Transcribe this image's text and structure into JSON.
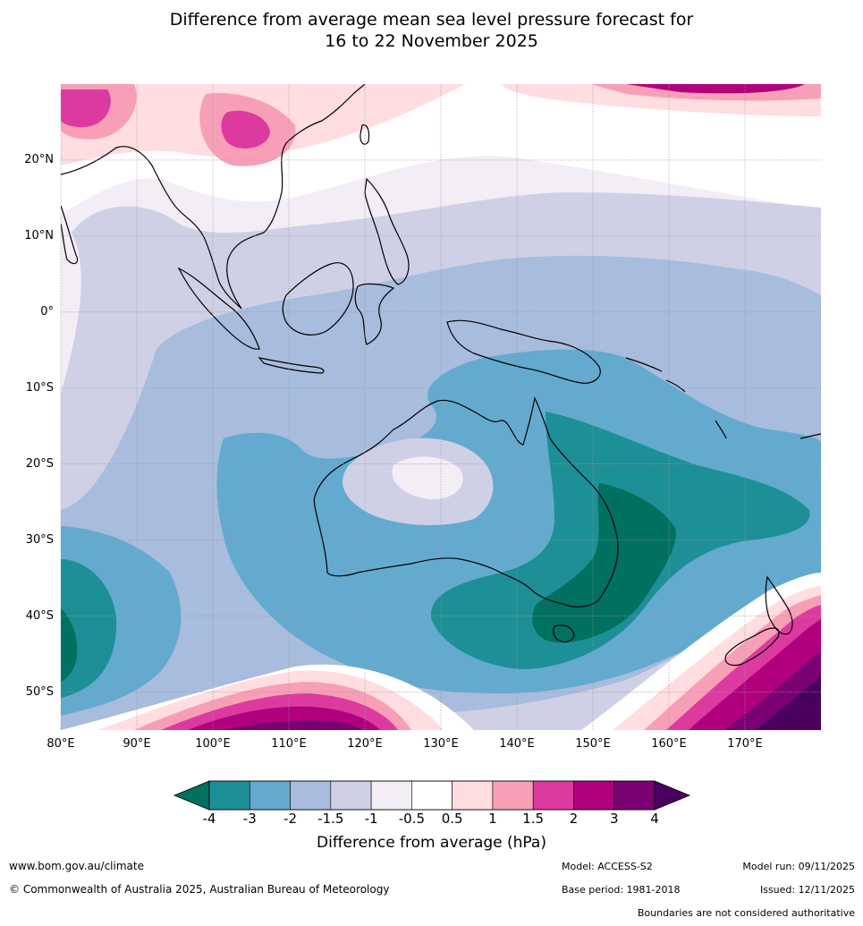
{
  "title": {
    "line1": "Difference from average mean sea level pressure forecast for",
    "line2": "16 to 22 November 2025"
  },
  "map": {
    "lat_labels": [
      "20°N",
      "10°N",
      "0°",
      "10°S",
      "20°S",
      "30°S",
      "40°S",
      "50°S"
    ],
    "lat_values": [
      20,
      10,
      0,
      -10,
      -20,
      -30,
      -40,
      -50
    ],
    "lon_labels": [
      "80°E",
      "90°E",
      "100°E",
      "110°E",
      "120°E",
      "130°E",
      "140°E",
      "150°E",
      "160°E",
      "170°E"
    ],
    "lon_values": [
      80,
      90,
      100,
      110,
      120,
      130,
      140,
      150,
      160,
      170
    ],
    "lon_range": [
      80,
      180
    ],
    "lat_range": [
      -55,
      30
    ]
  },
  "colorbar": {
    "title": "Difference from average (hPa)",
    "tick_labels": [
      "-4",
      "-3",
      "-2",
      "-1.5",
      "-1",
      "-0.5",
      "0.5",
      "1",
      "1.5",
      "2",
      "3",
      "4"
    ],
    "colors": [
      "#007060",
      "#1d8f96",
      "#64aacf",
      "#a8bcdd",
      "#cfd0e6",
      "#f3edf6",
      "#ffffff",
      "#ffdde0",
      "#f89fb8",
      "#dd3a9f",
      "#b0007e",
      "#7a0074",
      "#4a005e"
    ]
  },
  "footer": {
    "website": "www.bom.gov.au/climate",
    "copyright": "© Commonwealth of Australia 2025, Australian Bureau of Meteorology",
    "model": "Model: ACCESS-S2",
    "base_period": "Base period: 1981-2018",
    "model_run": "Model run: 09/11/2025",
    "issued": "Issued: 12/11/2025",
    "disclaimer": "Boundaries are not considered authoritative"
  }
}
